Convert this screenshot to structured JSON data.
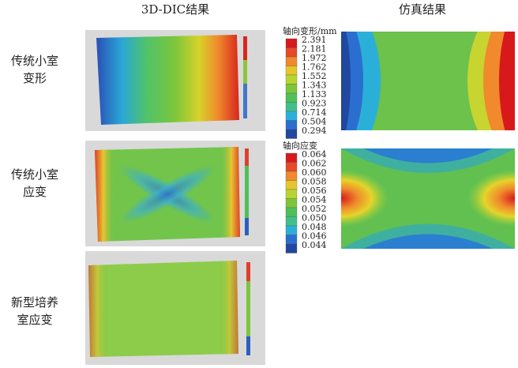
{
  "headers": [
    "3D-DIC结果",
    "仿真结果"
  ],
  "row_labels": [
    [
      "传统小室",
      "变形"
    ],
    [
      "传统小室",
      "应变"
    ],
    [
      "新型培养",
      "室应变"
    ]
  ],
  "legends": [
    {
      "title": "轴向变形/mm",
      "values": [
        "2.391",
        "2.181",
        "1.972",
        "1.762",
        "1.552",
        "1.343",
        "1.133",
        "0.923",
        "0.714",
        "0.504",
        "0.294"
      ]
    },
    {
      "title": "轴向应变",
      "values": [
        "0.064",
        "0.062",
        "0.060",
        "0.058",
        "0.056",
        "0.054",
        "0.052",
        "0.050",
        "0.048",
        "0.046",
        "0.044"
      ]
    }
  ]
}
